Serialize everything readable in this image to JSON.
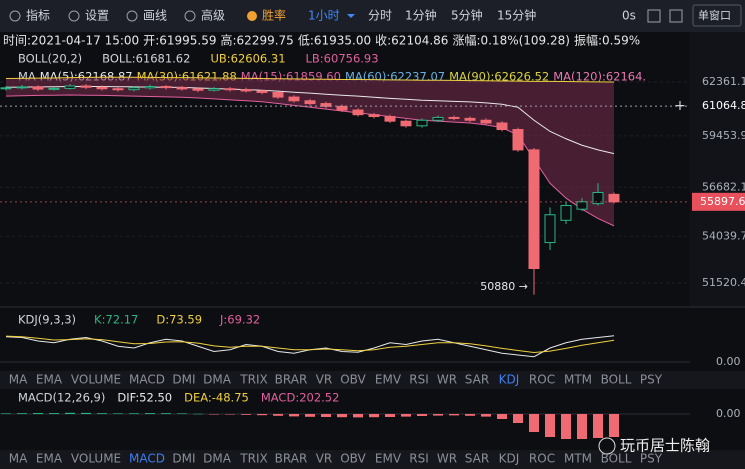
{
  "toolbar": {
    "items": [
      "指标",
      "设置",
      "画线",
      "高级"
    ],
    "win_rate": "胜率",
    "interval": "1小时",
    "periods": [
      "分时",
      "1分钟",
      "5分钟",
      "15分钟"
    ],
    "countdown": "0s",
    "window": "单窗口"
  },
  "info": [
    "时间:2021-04-17 15:00",
    "开:61995.59",
    "高:62299.75",
    "低:61935.00",
    "收:62104.86",
    "涨幅:0.18%(109.28)",
    "振幅:0.59%"
  ],
  "boll_legend": [
    "BOLL(20,2)",
    "BOLL:61681.62",
    "UB:62606.31",
    "LB:60756.93"
  ],
  "boll_legend_colors": [
    "#cfd3dc",
    "#cfd3dc",
    "#f0d040",
    "#e060a0"
  ],
  "ma_legend": [
    "MA",
    "MA(5):62168.87",
    "MA(30):61621.88",
    "MA(15):61859.60",
    "MA(60):62237.07",
    "MA(90):62626.52",
    "MA(120):62164."
  ],
  "ma_legend_colors": [
    "#cfd3dc",
    "#e8e8e8",
    "#f0d040",
    "#e060a0",
    "#6ab0e0",
    "#d8d040",
    "#e878b0"
  ],
  "chart_data": {
    "type": "candlestick",
    "open": [
      62000,
      62050,
      62100,
      61980,
      62020,
      62150,
      62080,
      62000,
      61950,
      62050,
      62120,
      62060,
      61990,
      61920,
      62000,
      61950,
      61880,
      61800,
      61550,
      61350,
      61200,
      61050,
      60850,
      60600,
      60500,
      60250,
      60000,
      60300,
      60450,
      60400,
      60300,
      60150,
      59800,
      58700,
      53700,
      54900,
      55500,
      55800,
      56300
    ],
    "high": [
      62150,
      62200,
      62180,
      62100,
      62250,
      62250,
      62180,
      62100,
      62150,
      62220,
      62200,
      62150,
      62080,
      62100,
      62100,
      62050,
      61950,
      61850,
      61650,
      61450,
      61300,
      61150,
      60950,
      60700,
      60600,
      60350,
      60400,
      60550,
      60550,
      60500,
      60400,
      60250,
      59900,
      58800,
      55600,
      55900,
      56100,
      56900,
      56400
    ],
    "low": [
      61900,
      61950,
      61880,
      61900,
      61950,
      61980,
      61900,
      61850,
      61850,
      61950,
      61950,
      61900,
      61820,
      61850,
      61850,
      61800,
      61700,
      61450,
      61250,
      61100,
      60950,
      60750,
      60500,
      60400,
      60150,
      59900,
      59900,
      60200,
      60300,
      60200,
      60050,
      59700,
      58600,
      50880,
      53300,
      54700,
      55400,
      55700,
      55800
    ],
    "close": [
      62050,
      62100,
      61980,
      62020,
      62150,
      62080,
      62000,
      61950,
      62050,
      62120,
      62060,
      61990,
      61920,
      62000,
      61950,
      61880,
      61800,
      61550,
      61350,
      61200,
      61050,
      60850,
      60600,
      60500,
      60250,
      60000,
      60300,
      60450,
      60400,
      60300,
      60150,
      59800,
      58700,
      52300,
      55200,
      55700,
      55900,
      56400,
      55897.6
    ],
    "boll_upper": [
      62550,
      62560,
      62570,
      62580,
      62600,
      62610,
      62620,
      62620,
      62620,
      62610,
      62600,
      62600,
      62590,
      62580,
      62570,
      62560,
      62550,
      62540,
      62530,
      62520,
      62510,
      62500,
      62500,
      62490,
      62480,
      62470,
      62460,
      62460,
      62450,
      62440,
      62430,
      62420,
      62410,
      62400,
      62400,
      62390,
      62380,
      62370,
      62360
    ],
    "boll_mid": [
      62080,
      62090,
      62100,
      62110,
      62120,
      62120,
      62120,
      62110,
      62100,
      62090,
      62080,
      62070,
      62040,
      62010,
      61980,
      61950,
      61920,
      61870,
      61810,
      61760,
      61700,
      61650,
      61600,
      61540,
      61480,
      61430,
      61380,
      61350,
      61320,
      61290,
      61240,
      61160,
      61000,
      60300,
      59700,
      59300,
      58950,
      58700,
      58500
    ],
    "boll_lower": [
      61600,
      61620,
      61640,
      61650,
      61660,
      61650,
      61640,
      61620,
      61600,
      61580,
      61560,
      61540,
      61500,
      61450,
      61400,
      61350,
      61300,
      61200,
      61100,
      61000,
      60900,
      60800,
      60700,
      60600,
      60500,
      60400,
      60300,
      60250,
      60200,
      60150,
      60050,
      59900,
      59500,
      58200,
      56900,
      56100,
      55500,
      55000,
      54600
    ],
    "up_color": "#2bb582",
    "down_color": "#f06a74",
    "band_color": "#7a2c50",
    "ylim": [
      50600,
      64090
    ],
    "yticks": [
      62361.1,
      59453.9,
      56682.1,
      54039.7,
      51520.4
    ],
    "crosshair_price": 61064.8,
    "last_price": 55897.6,
    "low_annotation": "50880 →",
    "kdj": {
      "K": [
        72,
        70,
        60,
        55,
        65,
        70,
        60,
        45,
        40,
        55,
        65,
        60,
        45,
        30,
        35,
        50,
        45,
        30,
        25,
        35,
        40,
        30,
        28,
        40,
        55,
        50,
        60,
        65,
        55,
        45,
        35,
        25,
        20,
        15,
        40,
        55,
        65,
        70,
        75
      ],
      "D": [
        74,
        72,
        68,
        63,
        64,
        66,
        64,
        58,
        52,
        53,
        57,
        58,
        54,
        46,
        42,
        45,
        45,
        40,
        35,
        35,
        37,
        35,
        32,
        35,
        42,
        45,
        50,
        55,
        55,
        52,
        46,
        39,
        33,
        27,
        31,
        39,
        48,
        55,
        62
      ],
      "ylim": [
        0,
        100
      ],
      "yticks": [
        {
          "value": 0,
          "label": "0.00"
        }
      ],
      "colors": [
        "#e8e8e8",
        "#f0d040"
      ]
    },
    "macd": {
      "hist": [
        30,
        40,
        50,
        45,
        60,
        55,
        40,
        30,
        35,
        45,
        40,
        30,
        10,
        -5,
        -20,
        -40,
        -60,
        -90,
        -120,
        -140,
        -150,
        -160,
        -170,
        -160,
        -150,
        -130,
        -100,
        -80,
        -70,
        -90,
        -130,
        -250,
        -450,
        -900,
        -1150,
        -1250,
        -1250,
        -1200,
        -1150
      ],
      "ylim": [
        -1300,
        450
      ],
      "yticks": [
        {
          "value": 0,
          "label": "0.00"
        }
      ]
    }
  },
  "kdj_legend": [
    "KDJ(9,3,3)",
    "K:72.17",
    "D:73.59",
    "J:69.32"
  ],
  "kdj_legend_colors": [
    "#cfd3dc",
    "#2bb582",
    "#f0d040",
    "#e060a0"
  ],
  "macd_legend": [
    "MACD(12,26,9)",
    "DIF:52.50",
    "DEA:-48.75",
    "MACD:202.52"
  ],
  "macd_legend_colors": [
    "#cfd3dc",
    "#e8e8e8",
    "#f0d040",
    "#e060a0"
  ],
  "indicator_tabs": [
    "MA",
    "EMA",
    "VOLUME",
    "MACD",
    "DMI",
    "DMA",
    "TRIX",
    "BRAR",
    "VR",
    "OBV",
    "EMV",
    "RSI",
    "WR",
    "SAR",
    "KDJ",
    "ROC",
    "MTM",
    "BOLL",
    "PSY"
  ],
  "upper_tab_active": "KDJ",
  "lower_tab_active": "MACD",
  "watermark": "玩币居士陈翰"
}
